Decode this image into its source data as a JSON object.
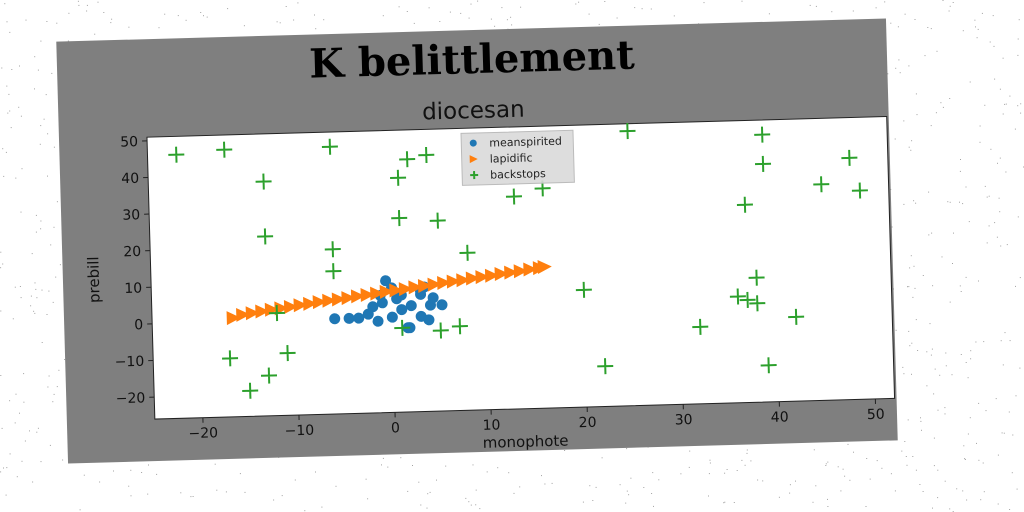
{
  "chart_data": {
    "type": "scatter",
    "title": "K belittlement",
    "subtitle": "diocesan",
    "xlabel": "monophote",
    "ylabel": "prebill",
    "xlim": [
      -25,
      52
    ],
    "ylim": [
      -26,
      51
    ],
    "xticks": [
      -20,
      -10,
      0,
      10,
      20,
      30,
      40,
      50
    ],
    "yticks": [
      -20,
      -10,
      0,
      10,
      20,
      30,
      40,
      50
    ],
    "legend_position": "top-center",
    "series": [
      {
        "name": "meanspirited",
        "marker": "circle",
        "color": "#1f77b4",
        "points": [
          [
            -6,
            0
          ],
          [
            -4.5,
            0
          ],
          [
            -3.5,
            0
          ],
          [
            -2.5,
            1
          ],
          [
            -2,
            3
          ],
          [
            -1.5,
            -1
          ],
          [
            -1.2,
            6
          ],
          [
            -1,
            4
          ],
          [
            -0.6,
            10
          ],
          [
            0,
            8
          ],
          [
            0,
            0
          ],
          [
            0.5,
            5
          ],
          [
            1,
            2
          ],
          [
            1,
            6
          ],
          [
            1.6,
            -3
          ],
          [
            2,
            3
          ],
          [
            3,
            0
          ],
          [
            3,
            6
          ],
          [
            3.4,
            8
          ],
          [
            3.8,
            -1
          ],
          [
            4,
            3
          ],
          [
            4.3,
            5
          ],
          [
            5.2,
            3
          ],
          [
            1.8,
            -3
          ],
          [
            3,
            7
          ]
        ]
      },
      {
        "name": "lapidific",
        "marker": "triangle-right",
        "color": "#ff7f0e",
        "points": [
          [
            -16.5,
            1
          ],
          [
            -15.5,
            1.8
          ],
          [
            -14.5,
            2.2
          ],
          [
            -13.5,
            2.6
          ],
          [
            -12.5,
            3
          ],
          [
            -11.5,
            3.3
          ],
          [
            -10.5,
            3.6
          ],
          [
            -9.5,
            4
          ],
          [
            -8.5,
            4.3
          ],
          [
            -7.5,
            4.7
          ],
          [
            -6.5,
            5
          ],
          [
            -5.5,
            5.3
          ],
          [
            -4.5,
            5.6
          ],
          [
            -3.5,
            6
          ],
          [
            -2.5,
            6.3
          ],
          [
            -1.5,
            6.6
          ],
          [
            -0.5,
            7
          ],
          [
            0.5,
            7.3
          ],
          [
            1.5,
            7.6
          ],
          [
            2.5,
            8
          ],
          [
            3.5,
            8.3
          ],
          [
            4.5,
            8.6
          ],
          [
            5.5,
            9
          ],
          [
            6.5,
            9.3
          ],
          [
            7.5,
            9.6
          ],
          [
            8.5,
            10
          ],
          [
            9.5,
            10.3
          ],
          [
            10.5,
            10.6
          ],
          [
            11.5,
            11
          ],
          [
            12.5,
            11.3
          ],
          [
            13.5,
            11.6
          ],
          [
            14.5,
            12
          ],
          [
            15.5,
            12.3
          ],
          [
            16,
            12.6
          ]
        ]
      },
      {
        "name": "backstops",
        "marker": "plus",
        "color": "#2ca02c",
        "points": [
          [
            -22,
            46
          ],
          [
            -17,
            47
          ],
          [
            -13,
            38
          ],
          [
            -13,
            23
          ],
          [
            -6,
            47
          ],
          [
            -6,
            19
          ],
          [
            -6,
            13
          ],
          [
            -13,
            -15
          ],
          [
            -12,
            2
          ],
          [
            -11,
            -9
          ],
          [
            -17,
            -10
          ],
          [
            -15,
            -19
          ],
          [
            1,
            38
          ],
          [
            2,
            43
          ],
          [
            4,
            44
          ],
          [
            1,
            27
          ],
          [
            5,
            26
          ],
          [
            8,
            17
          ],
          [
            1,
            -3
          ],
          [
            5,
            -4
          ],
          [
            7,
            -3
          ],
          [
            13,
            32
          ],
          [
            16,
            34
          ],
          [
            20,
            6
          ],
          [
            25,
            49
          ],
          [
            22,
            -15
          ],
          [
            32,
            -5
          ],
          [
            37,
            28
          ],
          [
            38,
            8
          ],
          [
            36,
            3
          ],
          [
            37,
            2
          ],
          [
            38,
            1
          ],
          [
            39,
            47
          ],
          [
            39,
            39
          ],
          [
            42,
            -3
          ],
          [
            39,
            -16
          ],
          [
            45,
            33
          ],
          [
            48,
            40
          ],
          [
            49,
            31
          ]
        ]
      }
    ]
  }
}
